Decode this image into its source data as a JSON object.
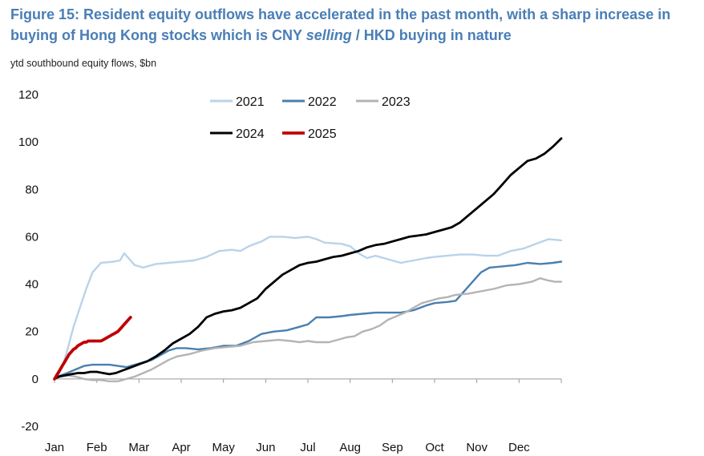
{
  "title": {
    "part1": "Figure 15: Resident equity outflows have accelerated in the past month, with a sharp increase in buying of Hong Kong stocks which is CNY ",
    "emph": "selling",
    "part2": " / HKD buying in nature"
  },
  "subtitle": "ytd southbound equity flows, $bn",
  "chart_data": {
    "type": "line",
    "title": "Figure 15: Resident equity outflows have accelerated in the past month, with a sharp increase in buying of Hong Kong stocks which is CNY selling / HKD buying in nature",
    "ylabel": "ytd southbound equity flows, $bn",
    "ylim": [
      -20,
      120
    ],
    "yticks": [
      -20,
      0,
      20,
      40,
      60,
      80,
      100,
      120
    ],
    "xlim": [
      0,
      12
    ],
    "xticks": [
      {
        "label": "Jan",
        "x": 0
      },
      {
        "label": "Feb",
        "x": 1
      },
      {
        "label": "Mar",
        "x": 2
      },
      {
        "label": "Apr",
        "x": 3
      },
      {
        "label": "May",
        "x": 4
      },
      {
        "label": "Jun",
        "x": 5
      },
      {
        "label": "Jul",
        "x": 6
      },
      {
        "label": "Aug",
        "x": 7
      },
      {
        "label": "Sep",
        "x": 8
      },
      {
        "label": "Oct",
        "x": 9
      },
      {
        "label": "Nov",
        "x": 10
      },
      {
        "label": "Dec",
        "x": 11
      }
    ],
    "x_unit": "month of year (Jan = 0)",
    "grid": false,
    "legend": {
      "position": "top-center",
      "columns": 3
    },
    "series": [
      {
        "name": "2021",
        "color": "#b9d3ea",
        "width": 2.4,
        "points": [
          [
            0,
            0
          ],
          [
            0.1,
            2
          ],
          [
            0.2,
            6
          ],
          [
            0.3,
            12
          ],
          [
            0.45,
            22
          ],
          [
            0.6,
            30
          ],
          [
            0.75,
            38
          ],
          [
            0.9,
            45
          ],
          [
            1.1,
            49
          ],
          [
            1.4,
            49.5
          ],
          [
            1.55,
            50
          ],
          [
            1.65,
            53
          ],
          [
            1.75,
            51
          ],
          [
            1.9,
            48
          ],
          [
            2.1,
            47
          ],
          [
            2.4,
            48.5
          ],
          [
            2.7,
            49
          ],
          [
            3,
            49.5
          ],
          [
            3.3,
            50
          ],
          [
            3.6,
            51.5
          ],
          [
            3.9,
            54
          ],
          [
            4.2,
            54.5
          ],
          [
            4.4,
            54
          ],
          [
            4.6,
            56
          ],
          [
            4.9,
            58
          ],
          [
            5.1,
            60
          ],
          [
            5.4,
            60
          ],
          [
            5.7,
            59.5
          ],
          [
            6.0,
            60
          ],
          [
            6.2,
            59
          ],
          [
            6.4,
            57.5
          ],
          [
            6.8,
            57
          ],
          [
            7.0,
            56
          ],
          [
            7.2,
            53
          ],
          [
            7.4,
            51
          ],
          [
            7.6,
            52
          ],
          [
            7.8,
            51
          ],
          [
            8.0,
            50
          ],
          [
            8.2,
            49
          ],
          [
            8.5,
            50
          ],
          [
            8.8,
            51
          ],
          [
            9.0,
            51.5
          ],
          [
            9.3,
            52
          ],
          [
            9.6,
            52.5
          ],
          [
            9.9,
            52.5
          ],
          [
            10.2,
            52
          ],
          [
            10.5,
            52
          ],
          [
            10.8,
            54
          ],
          [
            11.1,
            55
          ],
          [
            11.4,
            57
          ],
          [
            11.7,
            59
          ],
          [
            12,
            58.5
          ]
        ]
      },
      {
        "name": "2022",
        "color": "#4a7fb0",
        "width": 2.4,
        "points": [
          [
            0,
            0
          ],
          [
            0.15,
            1.5
          ],
          [
            0.3,
            2.5
          ],
          [
            0.5,
            4
          ],
          [
            0.7,
            5.5
          ],
          [
            0.9,
            6
          ],
          [
            1.1,
            6
          ],
          [
            1.3,
            6
          ],
          [
            1.5,
            5.5
          ],
          [
            1.7,
            5
          ],
          [
            1.9,
            6
          ],
          [
            2.1,
            7
          ],
          [
            2.3,
            8
          ],
          [
            2.5,
            10
          ],
          [
            2.7,
            12
          ],
          [
            2.9,
            13
          ],
          [
            3.1,
            13
          ],
          [
            3.4,
            12.5
          ],
          [
            3.7,
            13
          ],
          [
            4.0,
            14
          ],
          [
            4.3,
            14
          ],
          [
            4.6,
            16
          ],
          [
            4.9,
            19
          ],
          [
            5.2,
            20
          ],
          [
            5.5,
            20.5
          ],
          [
            5.8,
            22
          ],
          [
            6.0,
            23
          ],
          [
            6.2,
            26
          ],
          [
            6.5,
            26
          ],
          [
            6.8,
            26.5
          ],
          [
            7.0,
            27
          ],
          [
            7.3,
            27.5
          ],
          [
            7.6,
            28
          ],
          [
            7.9,
            28
          ],
          [
            8.2,
            28
          ],
          [
            8.5,
            29
          ],
          [
            8.8,
            31
          ],
          [
            9.0,
            32
          ],
          [
            9.3,
            32.5
          ],
          [
            9.5,
            33
          ],
          [
            9.7,
            37
          ],
          [
            9.9,
            41
          ],
          [
            10.1,
            45
          ],
          [
            10.3,
            47
          ],
          [
            10.6,
            47.5
          ],
          [
            10.9,
            48
          ],
          [
            11.2,
            49
          ],
          [
            11.5,
            48.5
          ],
          [
            11.8,
            49
          ],
          [
            12,
            49.5
          ]
        ]
      },
      {
        "name": "2023",
        "color": "#b4b4b4",
        "width": 2.4,
        "points": [
          [
            0,
            0
          ],
          [
            0.15,
            1
          ],
          [
            0.3,
            1.5
          ],
          [
            0.5,
            1
          ],
          [
            0.7,
            0
          ],
          [
            0.9,
            -0.5
          ],
          [
            1.1,
            -0.5
          ],
          [
            1.3,
            -1
          ],
          [
            1.5,
            -1
          ],
          [
            1.7,
            0
          ],
          [
            1.9,
            1
          ],
          [
            2.1,
            2.5
          ],
          [
            2.3,
            4
          ],
          [
            2.5,
            6
          ],
          [
            2.7,
            8
          ],
          [
            2.9,
            9.5
          ],
          [
            3.2,
            10.5
          ],
          [
            3.5,
            12
          ],
          [
            3.8,
            13
          ],
          [
            4.1,
            13.5
          ],
          [
            4.4,
            14
          ],
          [
            4.7,
            15.5
          ],
          [
            5.0,
            16
          ],
          [
            5.3,
            16.5
          ],
          [
            5.6,
            16
          ],
          [
            5.8,
            15.5
          ],
          [
            6.0,
            16
          ],
          [
            6.2,
            15.5
          ],
          [
            6.5,
            15.5
          ],
          [
            6.7,
            16.5
          ],
          [
            6.9,
            17.5
          ],
          [
            7.1,
            18
          ],
          [
            7.3,
            20
          ],
          [
            7.5,
            21
          ],
          [
            7.7,
            22.5
          ],
          [
            7.9,
            25
          ],
          [
            8.1,
            26.5
          ],
          [
            8.3,
            28
          ],
          [
            8.5,
            30
          ],
          [
            8.7,
            32
          ],
          [
            8.9,
            33
          ],
          [
            9.1,
            34
          ],
          [
            9.3,
            34.5
          ],
          [
            9.5,
            35.5
          ],
          [
            9.8,
            36
          ],
          [
            10.1,
            37
          ],
          [
            10.4,
            38
          ],
          [
            10.7,
            39.5
          ],
          [
            11.0,
            40
          ],
          [
            11.3,
            41
          ],
          [
            11.5,
            42.5
          ],
          [
            11.7,
            41.5
          ],
          [
            11.85,
            41
          ],
          [
            12,
            41
          ]
        ]
      },
      {
        "name": "2024",
        "color": "#000000",
        "width": 2.8,
        "points": [
          [
            0,
            0
          ],
          [
            0.1,
            1
          ],
          [
            0.25,
            1.5
          ],
          [
            0.4,
            2
          ],
          [
            0.55,
            2.5
          ],
          [
            0.7,
            2.5
          ],
          [
            0.85,
            3
          ],
          [
            1.0,
            3
          ],
          [
            1.15,
            2.5
          ],
          [
            1.3,
            2
          ],
          [
            1.45,
            2.5
          ],
          [
            1.6,
            3.5
          ],
          [
            1.75,
            4.5
          ],
          [
            1.9,
            5.5
          ],
          [
            2.05,
            6.5
          ],
          [
            2.2,
            7.5
          ],
          [
            2.4,
            9.5
          ],
          [
            2.6,
            12
          ],
          [
            2.8,
            15
          ],
          [
            3.0,
            17
          ],
          [
            3.2,
            19
          ],
          [
            3.4,
            22
          ],
          [
            3.6,
            26
          ],
          [
            3.8,
            27.5
          ],
          [
            4.0,
            28.5
          ],
          [
            4.2,
            29
          ],
          [
            4.4,
            30
          ],
          [
            4.6,
            32
          ],
          [
            4.8,
            34
          ],
          [
            5.0,
            38
          ],
          [
            5.2,
            41
          ],
          [
            5.4,
            44
          ],
          [
            5.6,
            46
          ],
          [
            5.8,
            48
          ],
          [
            6.0,
            49
          ],
          [
            6.2,
            49.5
          ],
          [
            6.4,
            50.5
          ],
          [
            6.6,
            51.5
          ],
          [
            6.8,
            52
          ],
          [
            7.0,
            53
          ],
          [
            7.2,
            54
          ],
          [
            7.4,
            55.5
          ],
          [
            7.6,
            56.5
          ],
          [
            7.8,
            57
          ],
          [
            8.0,
            58
          ],
          [
            8.2,
            59
          ],
          [
            8.4,
            60
          ],
          [
            8.6,
            60.5
          ],
          [
            8.8,
            61
          ],
          [
            9.0,
            62
          ],
          [
            9.2,
            63
          ],
          [
            9.4,
            64
          ],
          [
            9.6,
            66
          ],
          [
            9.8,
            69
          ],
          [
            10.0,
            72
          ],
          [
            10.2,
            75
          ],
          [
            10.4,
            78
          ],
          [
            10.6,
            82
          ],
          [
            10.8,
            86
          ],
          [
            11.0,
            89
          ],
          [
            11.2,
            92
          ],
          [
            11.4,
            93
          ],
          [
            11.6,
            95
          ],
          [
            11.8,
            98
          ],
          [
            12,
            101.5
          ]
        ]
      },
      {
        "name": "2025",
        "color": "#c00000",
        "width": 3.8,
        "points": [
          [
            0,
            0
          ],
          [
            0.05,
            1.5
          ],
          [
            0.1,
            3
          ],
          [
            0.15,
            4.5
          ],
          [
            0.2,
            6
          ],
          [
            0.25,
            7.5
          ],
          [
            0.3,
            9
          ],
          [
            0.35,
            10.5
          ],
          [
            0.4,
            11.5
          ],
          [
            0.45,
            12.5
          ],
          [
            0.5,
            13
          ],
          [
            0.55,
            14
          ],
          [
            0.6,
            14.5
          ],
          [
            0.65,
            15
          ],
          [
            0.7,
            15.5
          ],
          [
            0.75,
            15.5
          ],
          [
            0.8,
            16
          ],
          [
            0.85,
            16
          ],
          [
            0.9,
            16
          ],
          [
            0.95,
            16
          ],
          [
            1.0,
            16
          ],
          [
            1.05,
            16
          ],
          [
            1.1,
            16
          ],
          [
            1.15,
            16.5
          ],
          [
            1.2,
            17
          ],
          [
            1.25,
            17.5
          ],
          [
            1.3,
            18
          ],
          [
            1.35,
            18.5
          ],
          [
            1.4,
            19
          ],
          [
            1.45,
            19.5
          ],
          [
            1.5,
            20
          ],
          [
            1.55,
            21
          ],
          [
            1.6,
            22
          ],
          [
            1.65,
            23
          ],
          [
            1.7,
            24
          ],
          [
            1.75,
            25
          ],
          [
            1.8,
            26
          ]
        ]
      }
    ]
  }
}
